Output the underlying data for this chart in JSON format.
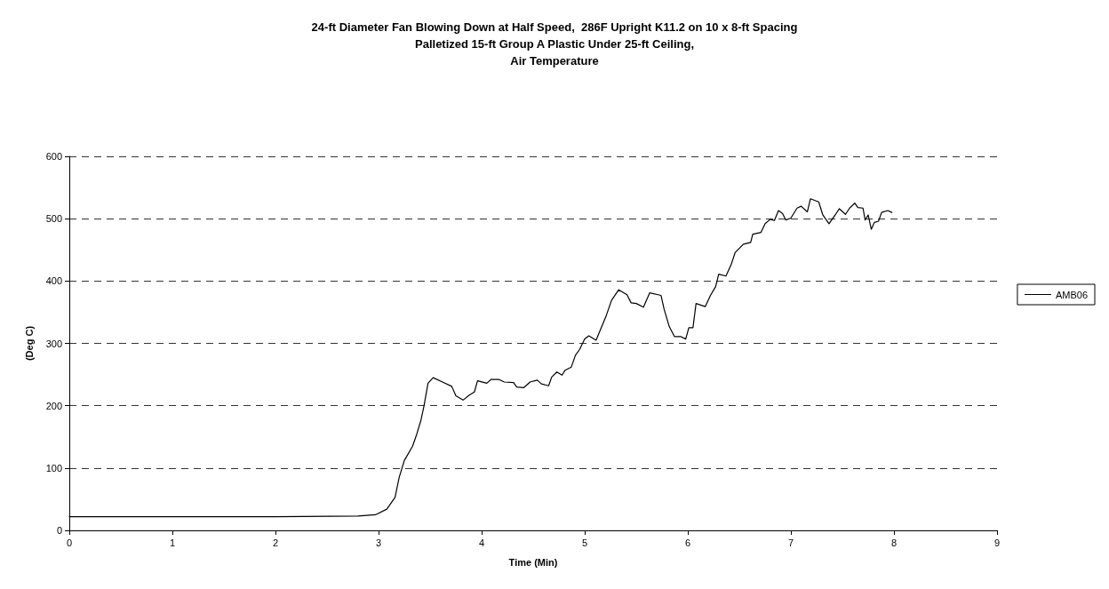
{
  "chart_data": {
    "type": "line",
    "title": "24-ft Diameter Fan Blowing Down at Half Speed,  286F Upright K11.2 on 10 x 8-ft Spacing\nPalletized 15-ft Group A Plastic Under 25-ft Ceiling,\nAir Temperature",
    "xlabel": "Time (Min)",
    "ylabel": "(Deg C)",
    "xlim": [
      0,
      9
    ],
    "xticks": [
      0,
      1,
      2,
      3,
      4,
      5,
      6,
      7,
      8,
      9
    ],
    "ylim": [
      0,
      600
    ],
    "yticks": [
      0,
      100,
      200,
      300,
      400,
      500,
      600
    ],
    "grid": "y",
    "legend": "right",
    "marker": "none",
    "line_style": "solid",
    "series": [
      {
        "name": "AMB06",
        "color": "#000000",
        "x": [
          0,
          1,
          2,
          2.8,
          2.97,
          3.08,
          3.16,
          3.2,
          3.25,
          3.33,
          3.37,
          3.41,
          3.44,
          3.48,
          3.53,
          3.62,
          3.71,
          3.75,
          3.82,
          3.88,
          3.93,
          3.96,
          4.05,
          4.09,
          4.17,
          4.22,
          4.31,
          4.34,
          4.41,
          4.47,
          4.54,
          4.58,
          4.65,
          4.68,
          4.73,
          4.78,
          4.81,
          4.87,
          4.91,
          4.95,
          5.0,
          5.04,
          5.11,
          5.16,
          5.21,
          5.26,
          5.33,
          5.41,
          5.45,
          5.5,
          5.57,
          5.63,
          5.74,
          5.77,
          5.82,
          5.87,
          5.93,
          5.98,
          6.01,
          6.05,
          6.08,
          6.17,
          6.22,
          6.27,
          6.3,
          6.37,
          6.42,
          6.46,
          6.54,
          6.61,
          6.63,
          6.71,
          6.75,
          6.8,
          6.84,
          6.88,
          6.92,
          6.95,
          7.0,
          7.06,
          7.1,
          7.16,
          7.19,
          7.27,
          7.31,
          7.37,
          7.43,
          7.47,
          7.53,
          7.57,
          7.62,
          7.65,
          7.7,
          7.72,
          7.75,
          7.78,
          7.81,
          7.85,
          7.88,
          7.94,
          7.98
        ],
        "values": [
          22,
          22,
          22,
          23,
          25,
          34,
          53,
          85,
          112,
          135,
          154,
          176,
          199,
          236,
          245,
          238,
          231,
          216,
          209,
          217,
          222,
          240,
          236,
          242,
          242,
          238,
          237,
          230,
          229,
          238,
          241,
          235,
          232,
          246,
          254,
          249,
          257,
          262,
          281,
          290,
          307,
          312,
          305,
          325,
          345,
          369,
          386,
          378,
          365,
          364,
          358,
          381,
          377,
          355,
          327,
          311,
          311,
          307,
          325,
          325,
          364,
          359,
          377,
          391,
          411,
          408,
          426,
          446,
          459,
          462,
          475,
          478,
          492,
          499,
          497,
          513,
          508,
          498,
          501,
          517,
          520,
          511,
          532,
          527,
          506,
          492,
          506,
          516,
          507,
          517,
          525,
          518,
          517,
          498,
          506,
          483,
          494,
          496,
          510,
          513,
          510
        ]
      }
    ]
  }
}
